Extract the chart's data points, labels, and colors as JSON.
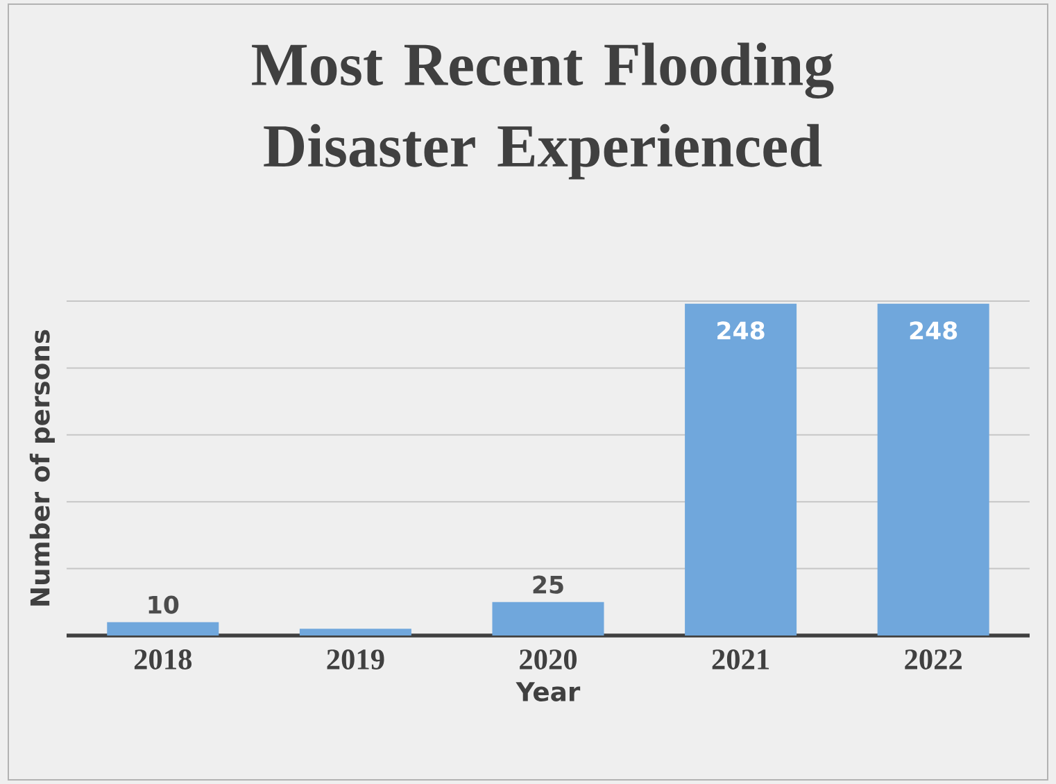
{
  "chart_data": {
    "type": "bar",
    "title": "Most Recent Flooding Disaster Experienced",
    "xlabel": "Year",
    "ylabel": "Number of persons",
    "categories": [
      "2018",
      "2019",
      "2020",
      "2021",
      "2022"
    ],
    "values": [
      10,
      5,
      25,
      248,
      248
    ],
    "value_labels": [
      "10",
      null,
      "25",
      "248",
      "248"
    ],
    "color": "#70a7dc",
    "ylim": [
      0,
      250
    ],
    "grid": "y"
  }
}
